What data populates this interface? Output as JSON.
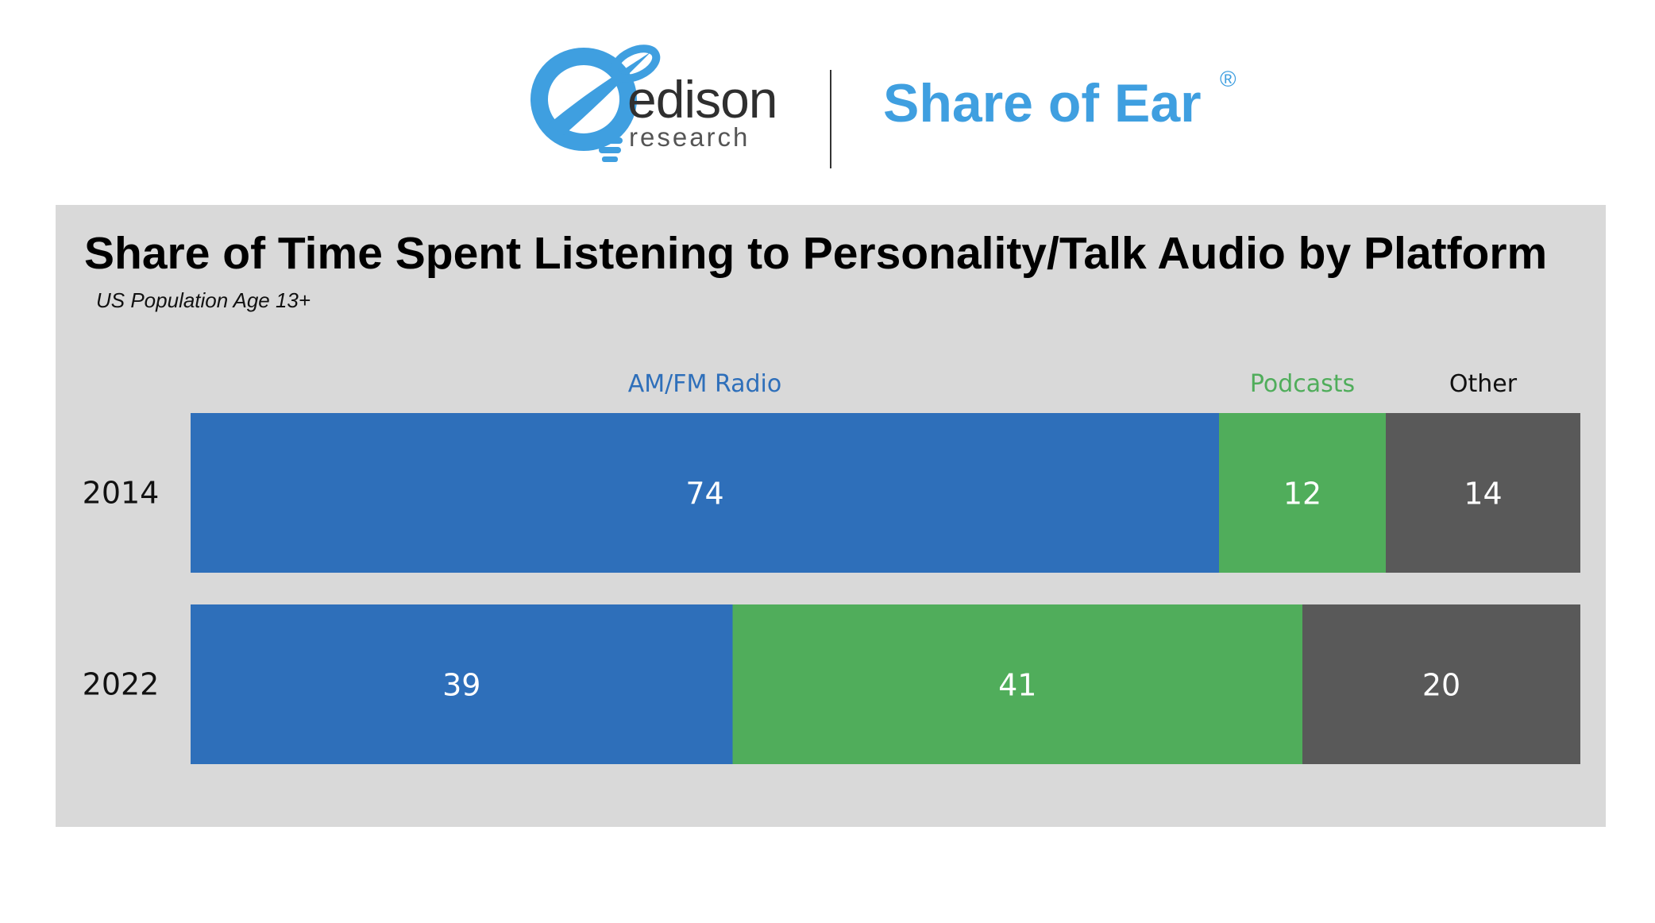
{
  "header": {
    "logo_word": "edison",
    "logo_sub": "research",
    "brand": "Share of Ear",
    "brand_mark": "®"
  },
  "colors": {
    "am_fm": "#2e6fba",
    "podcasts": "#50ad5b",
    "other": "#595959",
    "logo_blue": "#3f9fe0",
    "panel": "#d9d9d9"
  },
  "chart_data": {
    "type": "bar",
    "orientation": "horizontal",
    "stacked": true,
    "title": "Share of Time Spent Listening to Personality/Talk Audio by Platform",
    "subtitle": "US Population Age 13+",
    "categories": [
      "2014",
      "2022"
    ],
    "series": [
      {
        "name": "AM/FM Radio",
        "values": [
          74,
          39
        ],
        "color": "#2e6fba"
      },
      {
        "name": "Podcasts",
        "values": [
          12,
          41
        ],
        "color": "#50ad5b"
      },
      {
        "name": "Other",
        "values": [
          14,
          20
        ],
        "color": "#595959"
      }
    ],
    "xlim": [
      0,
      100
    ],
    "grid": false,
    "legend": "top",
    "data_labels": true
  }
}
